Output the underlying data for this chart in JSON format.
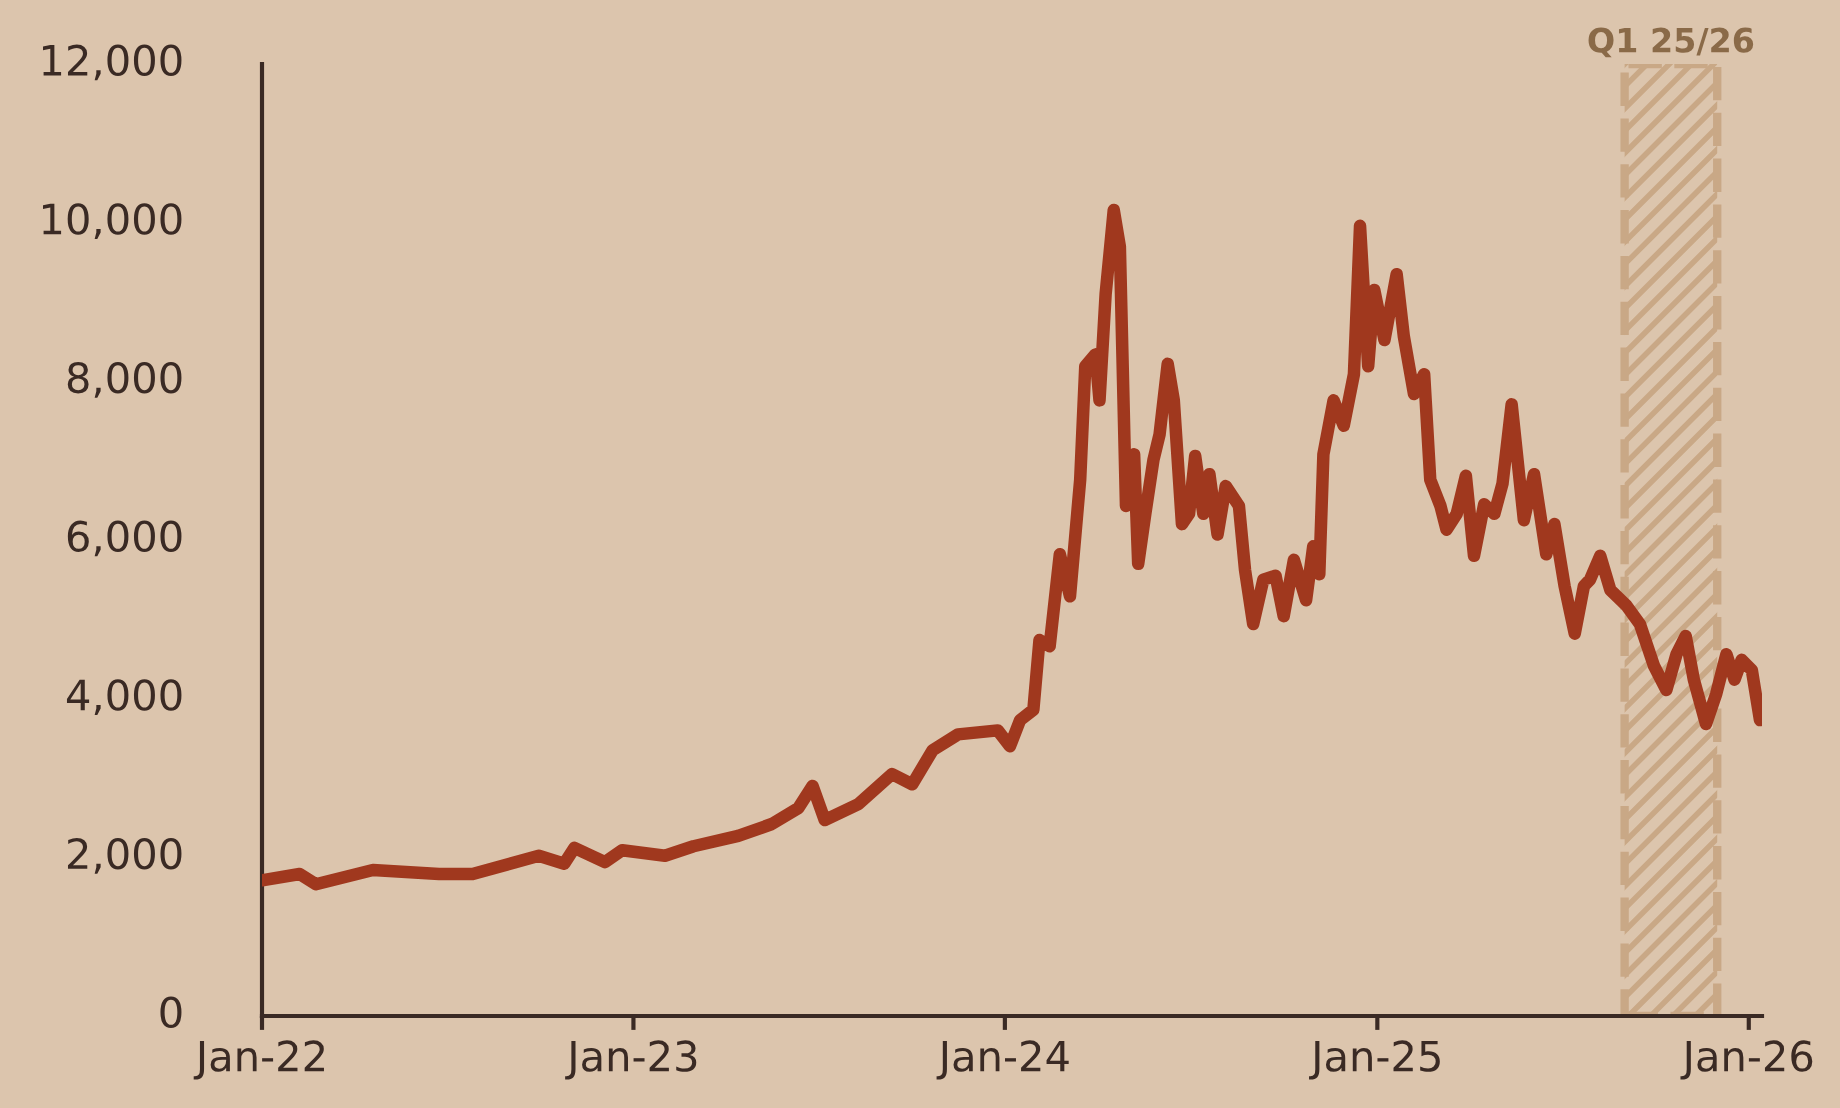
{
  "chart_data": {
    "type": "line",
    "x": [
      "2022-01-01",
      "2022-02-07",
      "2022-02-23",
      "2022-04-20",
      "2022-06-24",
      "2022-07-27",
      "2022-09-30",
      "2022-10-25",
      "2022-11-04",
      "2022-12-04",
      "2022-12-21",
      "2023-02-01",
      "2023-03-01",
      "2023-04-14",
      "2023-05-17",
      "2023-06-12",
      "2023-06-26",
      "2023-07-08",
      "2023-08-10",
      "2023-09-12",
      "2023-10-02",
      "2023-10-22",
      "2023-11-16",
      "2023-12-25",
      "2024-01-06",
      "2024-01-16",
      "2024-01-29",
      "2024-02-04",
      "2024-02-14",
      "2024-02-24",
      "2024-03-05",
      "2024-03-15",
      "2024-03-20",
      "2024-03-30",
      "2024-04-03",
      "2024-04-09",
      "2024-04-17",
      "2024-04-23",
      "2024-04-29",
      "2024-05-07",
      "2024-05-11",
      "2024-05-18",
      "2024-05-26",
      "2024-06-01",
      "2024-06-09",
      "2024-06-15",
      "2024-06-23",
      "2024-06-30",
      "2024-07-06",
      "2024-07-14",
      "2024-07-20",
      "2024-07-28",
      "2024-08-05",
      "2024-08-18",
      "2024-08-24",
      "2024-09-01",
      "2024-09-11",
      "2024-09-23",
      "2024-10-01",
      "2024-10-11",
      "2024-10-23",
      "2024-10-30",
      "2024-11-05",
      "2024-11-09",
      "2024-11-19",
      "2024-11-29",
      "2024-12-09",
      "2024-12-15",
      "2024-12-23",
      "2024-12-29",
      "2025-01-08",
      "2025-01-20",
      "2025-01-27",
      "2025-02-06",
      "2025-02-16",
      "2025-02-22",
      "2025-03-04",
      "2025-03-10",
      "2025-03-20",
      "2025-03-29",
      "2025-04-06",
      "2025-04-16",
      "2025-04-26",
      "2025-05-04",
      "2025-05-13",
      "2025-05-25",
      "2025-06-04",
      "2025-06-16",
      "2025-06-24",
      "2025-07-04",
      "2025-07-14",
      "2025-07-23",
      "2025-07-29",
      "2025-08-08",
      "2025-08-18",
      "2025-09-03",
      "2025-09-16",
      "2025-09-30",
      "2025-10-12",
      "2025-10-22",
      "2025-10-31",
      "2025-11-08",
      "2025-11-20",
      "2025-11-30",
      "2025-12-10",
      "2025-12-18",
      "2025-12-25",
      "2026-01-04",
      "2026-01-12"
    ],
    "series": [
      {
        "color": "#a0381e",
        "values": [
          1710,
          1790,
          1660,
          1840,
          1790,
          1790,
          2020,
          1920,
          2120,
          1940,
          2090,
          2020,
          2140,
          2270,
          2420,
          2620,
          2900,
          2470,
          2670,
          3050,
          2920,
          3350,
          3550,
          3600,
          3400,
          3730,
          3860,
          4740,
          4660,
          5820,
          5290,
          6760,
          8190,
          8340,
          7760,
          9100,
          10160,
          9700,
          6430,
          7080,
          5700,
          6330,
          7010,
          7330,
          8220,
          7760,
          6200,
          6330,
          7060,
          6330,
          6830,
          6070,
          6680,
          6430,
          5620,
          4940,
          5500,
          5550,
          5040,
          5750,
          5240,
          5920,
          5570,
          7080,
          7760,
          7440,
          8090,
          9960,
          8190,
          9150,
          8520,
          9350,
          8570,
          7840,
          8090,
          6760,
          6430,
          6130,
          6330,
          6810,
          5800,
          6450,
          6330,
          6710,
          7710,
          6250,
          6830,
          5820,
          6200,
          5420,
          4820,
          5420,
          5500,
          5800,
          5370,
          5170,
          4940,
          4410,
          4110,
          4560,
          4790,
          4240,
          3680,
          4060,
          4560,
          4240,
          4490,
          4360,
          3730
        ]
      }
    ],
    "xlim": [
      "2022-01-01",
      "2026-01-14"
    ],
    "xticks": [
      {
        "value": "2022-01-01",
        "label": "Jan-22"
      },
      {
        "value": "2023-01-01",
        "label": "Jan-23"
      },
      {
        "value": "2024-01-01",
        "label": "Jan-24"
      },
      {
        "value": "2025-01-01",
        "label": "Jan-25"
      },
      {
        "value": "2026-01-01",
        "label": "Jan-26"
      }
    ],
    "ylim": [
      0,
      12000
    ],
    "yticks": [
      {
        "value": 0,
        "label": "0"
      },
      {
        "value": 2000,
        "label": "2,000"
      },
      {
        "value": 4000,
        "label": "4,000"
      },
      {
        "value": 6000,
        "label": "6,000"
      },
      {
        "value": 8000,
        "label": "8,000"
      },
      {
        "value": 10000,
        "label": "10,000"
      },
      {
        "value": 12000,
        "label": "12,000"
      }
    ],
    "bands": [
      {
        "axis": "x",
        "from": "2025-09-01",
        "to": "2025-12-01",
        "label": "Q1 25/26",
        "color": "#c9a886"
      }
    ],
    "grid": false,
    "line_style": "solid",
    "marker": "none"
  }
}
